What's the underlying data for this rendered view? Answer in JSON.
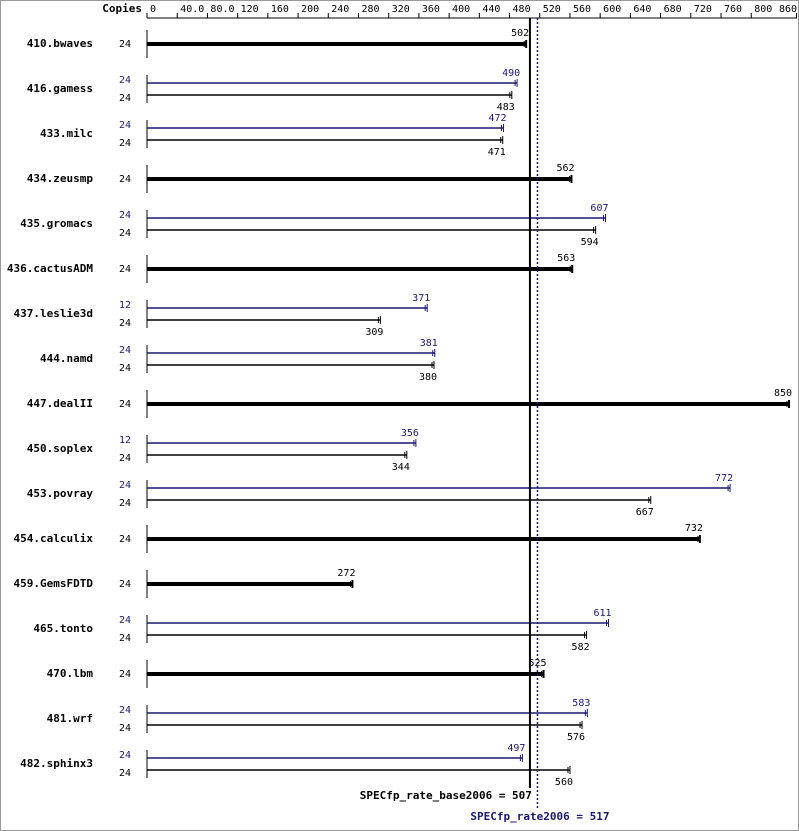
{
  "chart_data": {
    "type": "hbar",
    "copies_header": "Copies",
    "xlim": [
      0,
      850
    ],
    "xticks": [
      0,
      {
        "value": 40,
        "label": "40.0"
      },
      {
        "value": 80,
        "label": "80.0"
      },
      120,
      160,
      200,
      240,
      280,
      320,
      360,
      400,
      440,
      480,
      520,
      560,
      600,
      640,
      680,
      720,
      760,
      800,
      860
    ],
    "base_color": "#000000",
    "peak_color": "#191970",
    "benchmarks": [
      {
        "name": "410.bwaves",
        "base_copies": 24,
        "base": 502
      },
      {
        "name": "416.gamess",
        "peak_copies": 24,
        "peak": 490,
        "base_copies": 24,
        "base": 483
      },
      {
        "name": "433.milc",
        "peak_copies": 24,
        "peak": 472,
        "base_copies": 24,
        "base": 471
      },
      {
        "name": "434.zeusmp",
        "base_copies": 24,
        "base": 562
      },
      {
        "name": "435.gromacs",
        "peak_copies": 24,
        "peak": 607,
        "base_copies": 24,
        "base": 594
      },
      {
        "name": "436.cactusADM",
        "base_copies": 24,
        "base": 563
      },
      {
        "name": "437.leslie3d",
        "peak_copies": 12,
        "peak": 371,
        "base_copies": 24,
        "base": 309
      },
      {
        "name": "444.namd",
        "peak_copies": 24,
        "peak": 381,
        "base_copies": 24,
        "base": 380
      },
      {
        "name": "447.dealII",
        "base_copies": 24,
        "base": 850
      },
      {
        "name": "450.soplex",
        "peak_copies": 12,
        "peak": 356,
        "base_copies": 24,
        "base": 344
      },
      {
        "name": "453.povray",
        "peak_copies": 24,
        "peak": 772,
        "base_copies": 24,
        "base": 667
      },
      {
        "name": "454.calculix",
        "base_copies": 24,
        "base": 732
      },
      {
        "name": "459.GemsFDTD",
        "base_copies": 24,
        "base": 272
      },
      {
        "name": "465.tonto",
        "peak_copies": 24,
        "peak": 611,
        "base_copies": 24,
        "base": 582
      },
      {
        "name": "470.lbm",
        "base_copies": 24,
        "base": 525
      },
      {
        "name": "481.wrf",
        "peak_copies": 24,
        "peak": 583,
        "base_copies": 24,
        "base": 576
      },
      {
        "name": "482.sphinx3",
        "peak_copies": 24,
        "peak": 497,
        "base_copies": 24,
        "base": 560
      }
    ],
    "base_ref": {
      "value": 507,
      "label": "SPECfp_rate_base2006 = 507"
    },
    "peak_ref": {
      "value": 517,
      "label": "SPECfp_rate2006 = 517"
    }
  }
}
